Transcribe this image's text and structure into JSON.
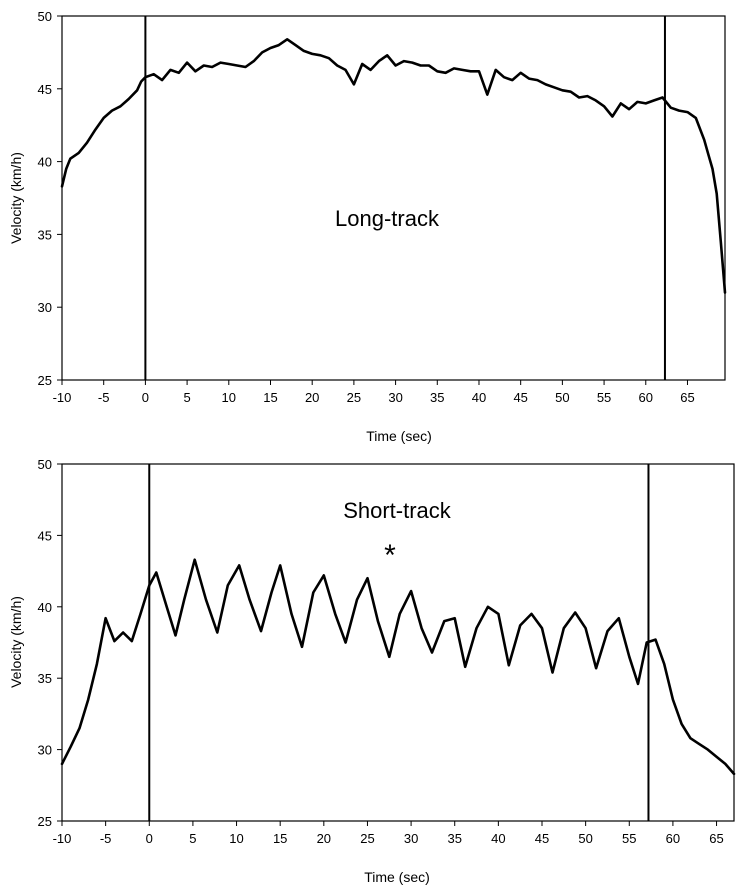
{
  "chart_data": [
    {
      "type": "line",
      "title": "",
      "xlabel": "Time (sec)",
      "ylabel": "Velocity (km/h)",
      "xlim": [
        -10,
        69.5
      ],
      "ylim": [
        25,
        50
      ],
      "xticks": [
        -10,
        -5,
        0,
        5,
        10,
        15,
        20,
        25,
        30,
        35,
        40,
        45,
        50,
        55,
        60,
        65
      ],
      "yticks": [
        25,
        30,
        35,
        40,
        45,
        50
      ],
      "grid": false,
      "annotation": "Long-track",
      "marker": "",
      "vlines": [
        0,
        62.3
      ],
      "line_color": "#000000",
      "series": [
        {
          "x": [
            -10,
            -9.5,
            -9,
            -8,
            -7,
            -6,
            -5,
            -4,
            -3,
            -2,
            -1,
            -0.5,
            0,
            1,
            2,
            3,
            4,
            5,
            6,
            7,
            8,
            9,
            10,
            11,
            12,
            13,
            14,
            15,
            16,
            17,
            18,
            19,
            20,
            21,
            22,
            23,
            24,
            25,
            26,
            27,
            28,
            29,
            30,
            31,
            32,
            33,
            34,
            35,
            36,
            37,
            38,
            39,
            40,
            41,
            42,
            43,
            44,
            45,
            46,
            47,
            48,
            49,
            50,
            51,
            52,
            53,
            54,
            55,
            56,
            57,
            58,
            59,
            60,
            61,
            62,
            63,
            64,
            65,
            66,
            67,
            67.5,
            68,
            68.5,
            69,
            69.5
          ],
          "y": [
            38.3,
            39.5,
            40.2,
            40.6,
            41.3,
            42.2,
            43.0,
            43.5,
            43.8,
            44.3,
            44.9,
            45.5,
            45.8,
            46.0,
            45.6,
            46.3,
            46.1,
            46.8,
            46.2,
            46.6,
            46.5,
            46.8,
            46.7,
            46.6,
            46.5,
            46.9,
            47.5,
            47.8,
            48.0,
            48.4,
            48.0,
            47.6,
            47.4,
            47.3,
            47.1,
            46.6,
            46.3,
            45.3,
            46.7,
            46.3,
            46.9,
            47.3,
            46.6,
            46.9,
            46.8,
            46.6,
            46.6,
            46.2,
            46.1,
            46.4,
            46.3,
            46.2,
            46.2,
            44.6,
            46.3,
            45.8,
            45.6,
            46.1,
            45.7,
            45.6,
            45.3,
            45.1,
            44.9,
            44.8,
            44.4,
            44.5,
            44.2,
            43.8,
            43.1,
            44.0,
            43.6,
            44.1,
            44.0,
            44.2,
            44.4,
            43.7,
            43.5,
            43.4,
            43.0,
            41.5,
            40.5,
            39.5,
            37.8,
            34.5,
            31.0
          ]
        }
      ]
    },
    {
      "type": "line",
      "title": "",
      "xlabel": "Time (sec)",
      "ylabel": "Velocity (km/h)",
      "xlim": [
        -10,
        67
      ],
      "ylim": [
        25,
        50
      ],
      "xticks": [
        -10,
        -5,
        0,
        5,
        10,
        15,
        20,
        25,
        30,
        35,
        40,
        45,
        50,
        55,
        60,
        65
      ],
      "yticks": [
        25,
        30,
        35,
        40,
        45,
        50
      ],
      "grid": false,
      "annotation": "Short-track",
      "marker": "*",
      "vlines": [
        0,
        57.2
      ],
      "line_color": "#000000",
      "series": [
        {
          "x": [
            -10,
            -9,
            -8,
            -7,
            -6,
            -5,
            -4,
            -3,
            -2,
            -1,
            0,
            0.8,
            2,
            3,
            4,
            5.2,
            6.5,
            7.8,
            9,
            10.3,
            11.5,
            12.8,
            14,
            15,
            16.3,
            17.5,
            18.8,
            20,
            21.3,
            22.5,
            23.8,
            25.0,
            26.2,
            27.5,
            28.7,
            30.0,
            31.2,
            32.4,
            33.8,
            35.0,
            36.2,
            37.5,
            38.8,
            40.0,
            41.2,
            42.5,
            43.8,
            45.0,
            46.2,
            47.5,
            48.8,
            50.0,
            51.2,
            52.5,
            53.8,
            55.0,
            56.0,
            57.0,
            58.0,
            59.0,
            60.0,
            61.0,
            62.0,
            63.0,
            64.0,
            65.0,
            66.0,
            67.0
          ],
          "y": [
            29.0,
            30.2,
            31.5,
            33.5,
            36.0,
            39.2,
            37.6,
            38.2,
            37.6,
            39.5,
            41.5,
            42.4,
            40.0,
            38.0,
            40.5,
            43.3,
            40.5,
            38.2,
            41.5,
            42.9,
            40.5,
            38.3,
            41.0,
            42.9,
            39.5,
            37.2,
            41.0,
            42.2,
            39.5,
            37.5,
            40.5,
            42.0,
            39.0,
            36.5,
            39.5,
            41.1,
            38.5,
            36.8,
            39.0,
            39.2,
            35.8,
            38.5,
            40.0,
            39.5,
            35.9,
            38.7,
            39.5,
            38.5,
            35.4,
            38.5,
            39.6,
            38.5,
            35.7,
            38.3,
            39.2,
            36.5,
            34.6,
            37.5,
            37.7,
            36.0,
            33.5,
            31.8,
            30.8,
            30.4,
            30.0,
            29.5,
            29.0,
            28.3
          ]
        }
      ]
    }
  ]
}
